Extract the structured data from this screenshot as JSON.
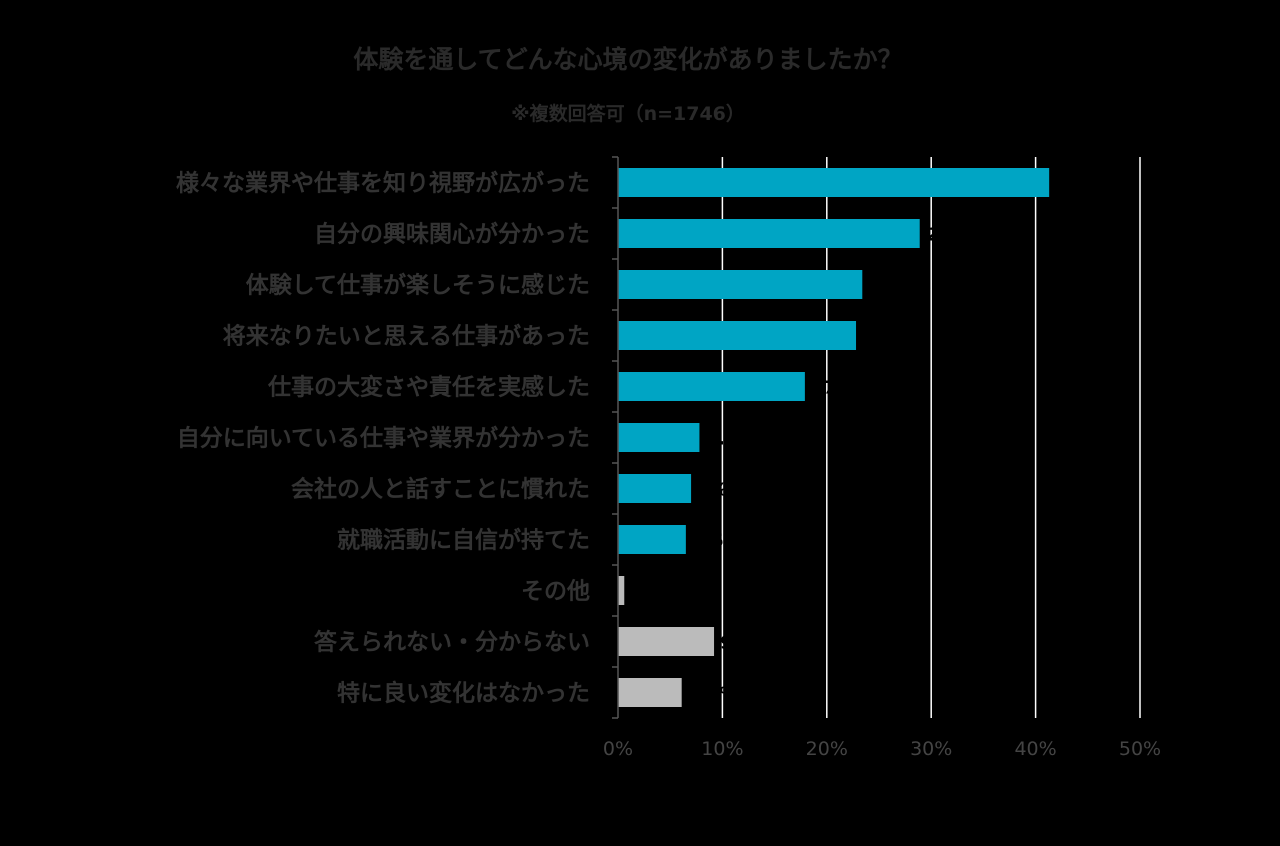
{
  "chart_data": {
    "type": "bar",
    "orientation": "horizontal",
    "title": "体験を通してどんな心境の変化がありましたか？",
    "subtitle": "※複数回答可（n=1746）",
    "categories": [
      "様々な業界や仕事を知り視野が広がった",
      "自分の興味関心が分かった",
      "体験して仕事が楽しそうに感じた",
      "将来なりたいと思える仕事があった",
      "仕事の大変さや責任を実感した",
      "自分に向いている仕事や業界が分かった",
      "会社の人と話すことに慣れた",
      "就職活動に自信が持てた",
      "その他",
      "答えられない・分からない",
      "特に良い変化はなかった"
    ],
    "values": [
      41.3,
      28.9,
      23.4,
      22.8,
      17.9,
      7.8,
      7.0,
      6.5,
      0.6,
      9.2,
      6.1
    ],
    "bar_colors": [
      "#00A5C4",
      "#00A5C4",
      "#00A5C4",
      "#00A5C4",
      "#00A5C4",
      "#00A5C4",
      "#00A5C4",
      "#00A5C4",
      "#BBBBBB",
      "#BBBBBB",
      "#BBBBBB"
    ],
    "xlim": [
      0,
      50
    ],
    "xticks": [
      "0%",
      "10%",
      "20%",
      "30%",
      "40%",
      "50%"
    ],
    "xtick_values": [
      0,
      10,
      20,
      30,
      40,
      50
    ],
    "grid": true,
    "xlabel": "",
    "ylabel": ""
  }
}
